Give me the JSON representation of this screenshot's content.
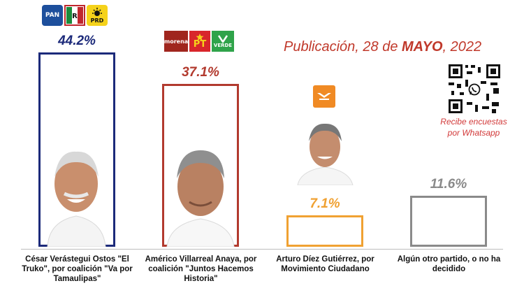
{
  "header": {
    "publication_prefix": "Publicación, 28 de",
    "publication_month": "MAYO",
    "publication_suffix": ", 2022"
  },
  "qr": {
    "caption_line1": "Recibe encuestas",
    "caption_line2": "por Whatsapp",
    "icon": "whatsapp-icon"
  },
  "parties": {
    "pan": "PAN",
    "prd": "PRD",
    "morena": "morena",
    "pt": "PT",
    "verde": "VERDE"
  },
  "chart_data": {
    "type": "bar",
    "categories": [
      "César Verástegui Ostos \"El Truko\", por coalición \"Va por Tamaulipas\"",
      "Américo Villarreal Anaya, por coalición \"Juntos Hacemos Historia\"",
      "Arturo Díez Gutiérrez, por Movimiento Ciudadano",
      "Algún otro partido, o no ha decidido"
    ],
    "values": [
      44.2,
      37.1,
      7.1,
      11.6
    ],
    "value_labels": [
      "44.2%",
      "37.1%",
      "7.1%",
      "11.6%"
    ],
    "colors": [
      "#1c2a7a",
      "#b23a2e",
      "#f0a132",
      "#8a8a8a"
    ],
    "ylim": [
      0,
      44.2
    ],
    "grid": false
  }
}
